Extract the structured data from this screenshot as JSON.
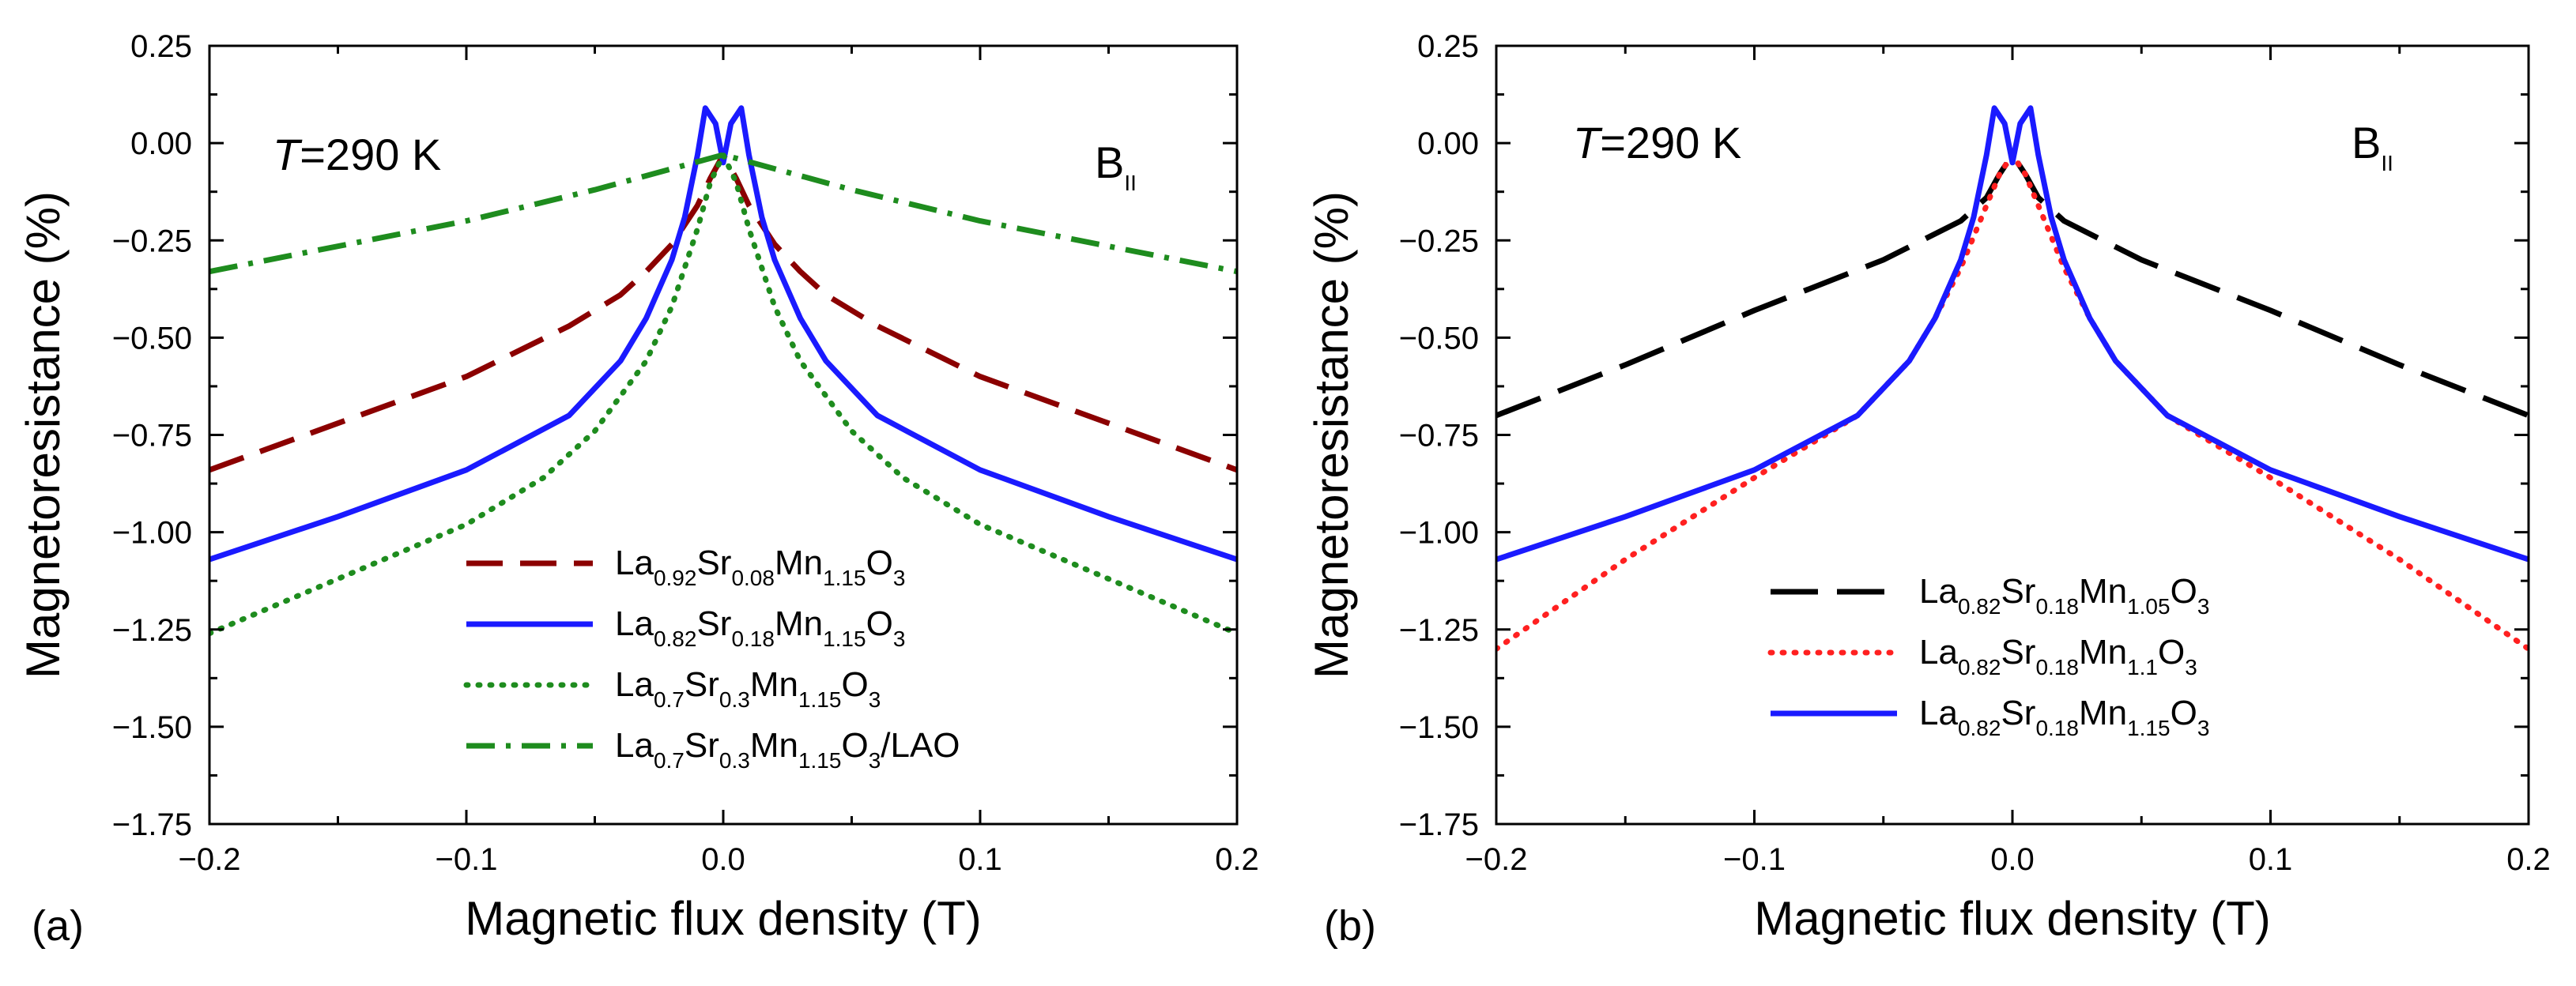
{
  "chart_data": [
    {
      "type": "line",
      "panel_label": "(a)",
      "xlabel": "Magnetic flux density (T)",
      "ylabel": "Magnetoresistance (%)",
      "xlim": [
        -0.2,
        0.2
      ],
      "ylim": [
        -1.75,
        0.25
      ],
      "xticks": [
        -0.2,
        -0.1,
        0.0,
        0.1,
        0.2
      ],
      "xtick_labels": [
        "−0.2",
        "−0.1",
        "0.0",
        "0.1",
        "0.2"
      ],
      "yticks": [
        0.25,
        0.0,
        -0.25,
        -0.5,
        -0.75,
        -1.0,
        -1.25,
        -1.5,
        -1.75
      ],
      "ytick_labels": [
        "0.25",
        "0.00",
        "−0.25",
        "−0.50",
        "−0.75",
        "−1.00",
        "−1.25",
        "−1.50",
        "−1.75"
      ],
      "annotation_T": {
        "italic": "T",
        "text": "=290 K"
      },
      "annotation_B": {
        "base": "B",
        "sub": "II"
      },
      "legend_position": "bottom-center",
      "series": [
        {
          "name": "La0.92Sr0.08Mn1.15O3",
          "legend_parts": [
            [
              "La",
              ""
            ],
            [
              "0.92",
              "sub"
            ],
            [
              "Sr",
              ""
            ],
            [
              "0.08",
              "sub"
            ],
            [
              "Mn",
              ""
            ],
            [
              "1.15",
              "sub"
            ],
            [
              "O",
              ""
            ],
            [
              "3",
              "sub"
            ]
          ],
          "color": "#8b0000",
          "dash": "dashed",
          "x": [
            -0.2,
            -0.15,
            -0.1,
            -0.06,
            -0.04,
            -0.03,
            -0.02,
            -0.015,
            -0.01,
            -0.005,
            0.0,
            0.005,
            0.01,
            0.015,
            0.02,
            0.03,
            0.04,
            0.06,
            0.1,
            0.15,
            0.2
          ],
          "y": [
            -0.84,
            -0.72,
            -0.6,
            -0.47,
            -0.39,
            -0.33,
            -0.26,
            -0.21,
            -0.16,
            -0.09,
            -0.03,
            -0.09,
            -0.16,
            -0.21,
            -0.26,
            -0.33,
            -0.39,
            -0.47,
            -0.6,
            -0.72,
            -0.84
          ]
        },
        {
          "name": "La0.82Sr0.18Mn1.15O3",
          "legend_parts": [
            [
              "La",
              ""
            ],
            [
              "0.82",
              "sub"
            ],
            [
              "Sr",
              ""
            ],
            [
              "0.18",
              "sub"
            ],
            [
              "Mn",
              ""
            ],
            [
              "1.15",
              "sub"
            ],
            [
              "O",
              ""
            ],
            [
              "3",
              "sub"
            ]
          ],
          "color": "#1a1aff",
          "dash": "solid",
          "x": [
            -0.2,
            -0.15,
            -0.1,
            -0.08,
            -0.06,
            -0.04,
            -0.03,
            -0.02,
            -0.015,
            -0.01,
            -0.007,
            -0.003,
            0.0,
            0.003,
            0.007,
            0.01,
            0.015,
            0.02,
            0.03,
            0.04,
            0.06,
            0.08,
            0.1,
            0.15,
            0.2
          ],
          "y": [
            -1.07,
            -0.96,
            -0.84,
            -0.77,
            -0.7,
            -0.56,
            -0.45,
            -0.3,
            -0.19,
            -0.03,
            0.09,
            0.05,
            -0.05,
            0.05,
            0.09,
            -0.03,
            -0.19,
            -0.3,
            -0.45,
            -0.56,
            -0.7,
            -0.77,
            -0.84,
            -0.96,
            -1.07
          ]
        },
        {
          "name": "La0.7Sr0.3Mn1.15O3",
          "legend_parts": [
            [
              "La",
              ""
            ],
            [
              "0.7",
              "sub"
            ],
            [
              "Sr",
              ""
            ],
            [
              "0.3",
              "sub"
            ],
            [
              "Mn",
              ""
            ],
            [
              "1.15",
              "sub"
            ],
            [
              "O",
              ""
            ],
            [
              "3",
              "sub"
            ]
          ],
          "color": "#1e8c1e",
          "dash": "dotted",
          "x": [
            -0.2,
            -0.15,
            -0.1,
            -0.07,
            -0.05,
            -0.03,
            -0.02,
            -0.01,
            -0.005,
            0.0,
            0.005,
            0.01,
            0.02,
            0.03,
            0.05,
            0.07,
            0.1,
            0.15,
            0.2
          ],
          "y": [
            -1.26,
            -1.12,
            -0.98,
            -0.86,
            -0.74,
            -0.56,
            -0.42,
            -0.22,
            -0.1,
            -0.03,
            -0.1,
            -0.22,
            -0.42,
            -0.56,
            -0.74,
            -0.86,
            -0.98,
            -1.12,
            -1.26
          ]
        },
        {
          "name": "La0.7Sr0.3Mn1.15O3/LAO",
          "legend_parts": [
            [
              "La",
              ""
            ],
            [
              "0.7",
              "sub"
            ],
            [
              "Sr",
              ""
            ],
            [
              "0.3",
              "sub"
            ],
            [
              "Mn",
              ""
            ],
            [
              "1.15",
              "sub"
            ],
            [
              "O",
              ""
            ],
            [
              "3",
              "sub"
            ],
            [
              "/LAO",
              ""
            ]
          ],
          "color": "#1e8c1e",
          "dash": "dashdot",
          "x": [
            -0.2,
            -0.1,
            -0.05,
            0.0,
            0.05,
            0.1,
            0.2
          ],
          "y": [
            -0.33,
            -0.2,
            -0.12,
            -0.03,
            -0.12,
            -0.2,
            -0.33
          ]
        }
      ]
    },
    {
      "type": "line",
      "panel_label": "(b)",
      "xlabel": "Magnetic flux density (T)",
      "ylabel": "Magnetoresistance (%)",
      "xlim": [
        -0.2,
        0.2
      ],
      "ylim": [
        -1.75,
        0.25
      ],
      "xticks": [
        -0.2,
        -0.1,
        0.0,
        0.1,
        0.2
      ],
      "xtick_labels": [
        "−0.2",
        "−0.1",
        "0.0",
        "0.1",
        "0.2"
      ],
      "yticks": [
        0.25,
        0.0,
        -0.25,
        -0.5,
        -0.75,
        -1.0,
        -1.25,
        -1.5,
        -1.75
      ],
      "ytick_labels": [
        "0.25",
        "0.00",
        "−0.25",
        "−0.50",
        "−0.75",
        "−1.00",
        "−1.25",
        "−1.50",
        "−1.75"
      ],
      "annotation_T": {
        "italic": "T",
        "text": "=290 K"
      },
      "annotation_B": {
        "base": "B",
        "sub": "II"
      },
      "legend_position": "bottom-center",
      "series": [
        {
          "name": "La0.82Sr0.18Mn1.05O3",
          "legend_parts": [
            [
              "La",
              ""
            ],
            [
              "0.82",
              "sub"
            ],
            [
              "Sr",
              ""
            ],
            [
              "0.18",
              "sub"
            ],
            [
              "Mn",
              ""
            ],
            [
              "1.05",
              "sub"
            ],
            [
              "O",
              ""
            ],
            [
              "3",
              "sub"
            ]
          ],
          "color": "#000000",
          "dash": "longdash",
          "x": [
            -0.2,
            -0.15,
            -0.1,
            -0.05,
            -0.02,
            -0.01,
            -0.005,
            0.0,
            0.005,
            0.01,
            0.02,
            0.05,
            0.1,
            0.15,
            0.2
          ],
          "y": [
            -0.7,
            -0.57,
            -0.43,
            -0.3,
            -0.2,
            -0.14,
            -0.08,
            -0.03,
            -0.08,
            -0.14,
            -0.2,
            -0.3,
            -0.43,
            -0.57,
            -0.7
          ]
        },
        {
          "name": "La0.82Sr0.18Mn1.1O3",
          "legend_parts": [
            [
              "La",
              ""
            ],
            [
              "0.82",
              "sub"
            ],
            [
              "Sr",
              ""
            ],
            [
              "0.18",
              "sub"
            ],
            [
              "Mn",
              ""
            ],
            [
              "1.1",
              "sub"
            ],
            [
              "O",
              ""
            ],
            [
              "3",
              "sub"
            ]
          ],
          "color": "#ff2020",
          "dash": "dotted",
          "x": [
            -0.2,
            -0.15,
            -0.1,
            -0.06,
            -0.04,
            -0.03,
            -0.02,
            -0.015,
            -0.01,
            -0.005,
            0.0,
            0.005,
            0.01,
            0.015,
            0.02,
            0.03,
            0.04,
            0.06,
            0.1,
            0.15,
            0.2
          ],
          "y": [
            -1.3,
            -1.07,
            -0.86,
            -0.7,
            -0.56,
            -0.45,
            -0.32,
            -0.24,
            -0.16,
            -0.08,
            -0.03,
            -0.08,
            -0.16,
            -0.24,
            -0.32,
            -0.45,
            -0.56,
            -0.7,
            -0.86,
            -1.07,
            -1.3
          ]
        },
        {
          "name": "La0.82Sr0.18Mn1.15O3",
          "legend_parts": [
            [
              "La",
              ""
            ],
            [
              "0.82",
              "sub"
            ],
            [
              "Sr",
              ""
            ],
            [
              "0.18",
              "sub"
            ],
            [
              "Mn",
              ""
            ],
            [
              "1.15",
              "sub"
            ],
            [
              "O",
              ""
            ],
            [
              "3",
              "sub"
            ]
          ],
          "color": "#1a1aff",
          "dash": "solid",
          "x": [
            -0.2,
            -0.15,
            -0.1,
            -0.08,
            -0.06,
            -0.04,
            -0.03,
            -0.02,
            -0.015,
            -0.01,
            -0.007,
            -0.003,
            0.0,
            0.003,
            0.007,
            0.01,
            0.015,
            0.02,
            0.03,
            0.04,
            0.06,
            0.08,
            0.1,
            0.15,
            0.2
          ],
          "y": [
            -1.07,
            -0.96,
            -0.84,
            -0.77,
            -0.7,
            -0.56,
            -0.45,
            -0.3,
            -0.19,
            -0.03,
            0.09,
            0.05,
            -0.05,
            0.05,
            0.09,
            -0.03,
            -0.19,
            -0.3,
            -0.45,
            -0.56,
            -0.7,
            -0.77,
            -0.84,
            -0.96,
            -1.07
          ]
        }
      ]
    }
  ]
}
